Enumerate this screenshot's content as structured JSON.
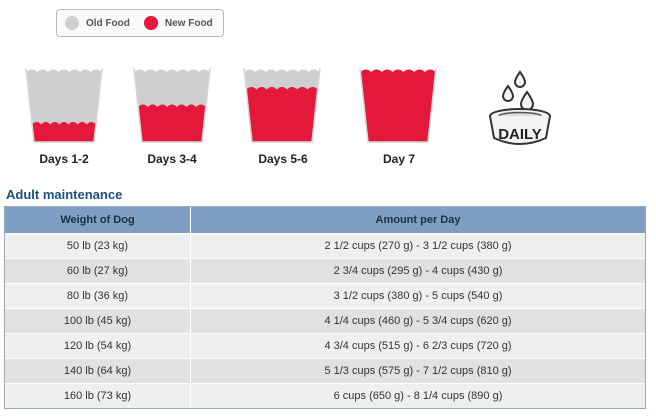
{
  "legend": {
    "old_label": "Old Food",
    "new_label": "New Food",
    "old_color": "#cfcfcf",
    "new_color": "#e3183a"
  },
  "transition": [
    {
      "label": "Days 1-2",
      "new_food_fraction": 0.25
    },
    {
      "label": "Days 3-4",
      "new_food_fraction": 0.5
    },
    {
      "label": "Days 5-6",
      "new_food_fraction": 0.75
    },
    {
      "label": "Day 7",
      "new_food_fraction": 1.0
    }
  ],
  "daily_icon": {
    "text": "DAILY"
  },
  "section": {
    "title": "Adult maintenance"
  },
  "table": {
    "headers": [
      "Weight of Dog",
      "Amount per Day"
    ],
    "rows": [
      [
        "50 lb (23 kg)",
        "2 1/2 cups (270 g) - 3 1/2 cups (380 g)"
      ],
      [
        "60 lb (27 kg)",
        "2 3/4 cups (295 g) - 4 cups (430 g)"
      ],
      [
        "80 lb (36 kg)",
        "3 1/2 cups (380 g) - 5 cups (540 g)"
      ],
      [
        "100 lb (45 kg)",
        "4 1/4 cups (460 g) - 5 3/4 cups (620 g)"
      ],
      [
        "120 lb (54 kg)",
        "4 3/4 cups (515 g) - 6 2/3 cups (720 g)"
      ],
      [
        "140 lb (64 kg)",
        "5 1/3 cups (575 g) - 7 1/2 cups (810 g)"
      ],
      [
        "160 lb (73 kg)",
        "6 cups (650 g) - 8 1/4 cups (890 g)"
      ]
    ]
  }
}
